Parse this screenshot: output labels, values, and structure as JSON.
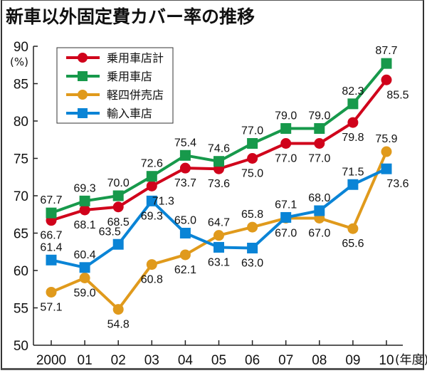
{
  "chart_data": {
    "type": "line",
    "title": "新車以外固定費カバー率の推移",
    "ylabel": "(%)",
    "xlabel": "(年度)",
    "ylim": [
      50,
      90
    ],
    "yticks": [
      50,
      55,
      60,
      65,
      70,
      75,
      80,
      85,
      90
    ],
    "categories": [
      "2000",
      "01",
      "02",
      "03",
      "04",
      "05",
      "06",
      "07",
      "08",
      "09",
      "10"
    ],
    "grid": false,
    "legend_position": "top-left",
    "series": [
      {
        "name": "乗用車店計",
        "color": "#d0021b",
        "marker": "circle",
        "values": [
          66.7,
          68.1,
          68.5,
          71.3,
          73.7,
          73.6,
          75.0,
          77.0,
          77.0,
          79.8,
          85.5
        ],
        "label_positions": [
          "below",
          "below",
          "below",
          "below-right",
          "below",
          "below",
          "below",
          "below",
          "below",
          "below",
          "below-right"
        ]
      },
      {
        "name": "乗用車店",
        "color": "#17994b",
        "marker": "square",
        "values": [
          67.7,
          69.3,
          70.0,
          72.6,
          75.4,
          74.6,
          77.0,
          79.0,
          79.0,
          82.3,
          87.7
        ],
        "label_positions": [
          "above",
          "above",
          "above",
          "above",
          "above",
          "above",
          "above",
          "above",
          "above",
          "above",
          "above"
        ]
      },
      {
        "name": "軽四併売店",
        "color": "#e09a1c",
        "marker": "circle",
        "values": [
          57.1,
          59.0,
          54.8,
          60.8,
          62.1,
          64.7,
          65.8,
          67.0,
          67.0,
          65.6,
          75.9
        ],
        "label_positions": [
          "below",
          "below",
          "below",
          "below",
          "below",
          "above",
          "above",
          "below",
          "below",
          "below",
          "above"
        ]
      },
      {
        "name": "輸入車店",
        "color": "#0a84d6",
        "marker": "square",
        "values": [
          61.4,
          60.4,
          63.5,
          69.3,
          65.0,
          63.1,
          63.0,
          67.1,
          68.0,
          71.5,
          73.6
        ],
        "label_positions": [
          "above",
          "above",
          "above-left",
          "below",
          "above",
          "below",
          "below",
          "above",
          "above",
          "above",
          "below-right"
        ]
      }
    ]
  }
}
